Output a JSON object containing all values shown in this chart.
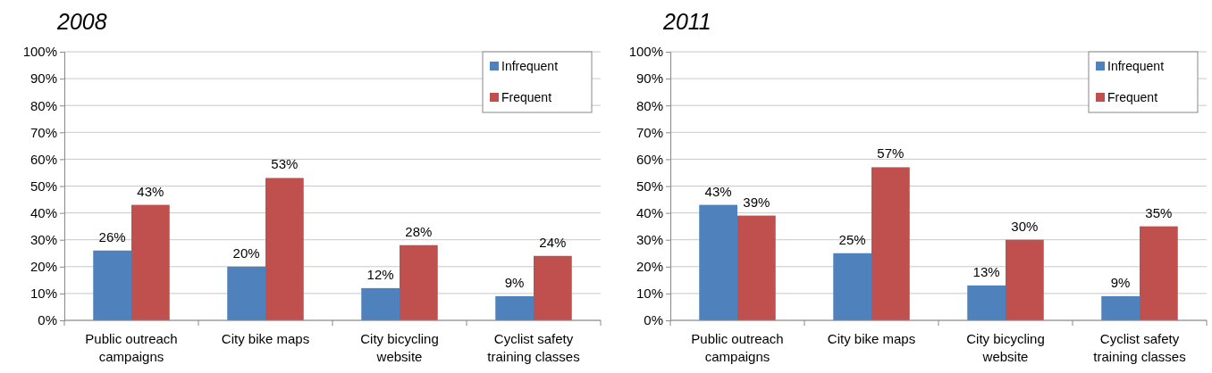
{
  "chart_data": [
    {
      "type": "bar",
      "title": "2008",
      "categories": [
        "Public outreach campaigns",
        "City bike maps",
        "City bicycling website",
        "Cyclist safety training classes"
      ],
      "series": [
        {
          "name": "Infrequent",
          "color": "#4f81bd",
          "values": [
            26,
            20,
            12,
            9
          ],
          "value_labels": [
            "26%",
            "20%",
            "12%",
            "9%"
          ]
        },
        {
          "name": "Frequent",
          "color": "#c0504d",
          "values": [
            43,
            53,
            28,
            24
          ],
          "value_labels": [
            "43%",
            "53%",
            "28%",
            "24%"
          ]
        }
      ],
      "ylim": [
        0,
        100
      ],
      "yticks": [
        {
          "value": 0,
          "label": "0%"
        },
        {
          "value": 10,
          "label": "10%"
        },
        {
          "value": 20,
          "label": "20%"
        },
        {
          "value": 30,
          "label": "30%"
        },
        {
          "value": 40,
          "label": "40%"
        },
        {
          "value": 50,
          "label": "50%"
        },
        {
          "value": 60,
          "label": "60%"
        },
        {
          "value": 70,
          "label": "70%"
        },
        {
          "value": 80,
          "label": "80%"
        },
        {
          "value": 90,
          "label": "90%"
        },
        {
          "value": 100,
          "label": "100%"
        }
      ],
      "grid": "y",
      "legend": "top right"
    },
    {
      "type": "bar",
      "title": "2011",
      "categories": [
        "Public outreach campaigns",
        "City bike maps",
        "City bicycling website",
        "Cyclist safety training classes"
      ],
      "series": [
        {
          "name": "Infrequent",
          "color": "#4f81bd",
          "values": [
            43,
            25,
            13,
            9
          ],
          "value_labels": [
            "43%",
            "25%",
            "13%",
            "9%"
          ]
        },
        {
          "name": "Frequent",
          "color": "#c0504d",
          "values": [
            39,
            57,
            30,
            35
          ],
          "value_labels": [
            "39%",
            "57%",
            "30%",
            "35%"
          ]
        }
      ],
      "ylim": [
        0,
        100
      ],
      "yticks": [
        {
          "value": 0,
          "label": "0%"
        },
        {
          "value": 10,
          "label": "10%"
        },
        {
          "value": 20,
          "label": "20%"
        },
        {
          "value": 30,
          "label": "30%"
        },
        {
          "value": 40,
          "label": "40%"
        },
        {
          "value": 50,
          "label": "50%"
        },
        {
          "value": 60,
          "label": "60%"
        },
        {
          "value": 70,
          "label": "70%"
        },
        {
          "value": 80,
          "label": "80%"
        },
        {
          "value": 90,
          "label": "90%"
        },
        {
          "value": 100,
          "label": "100%"
        }
      ],
      "grid": "y",
      "legend": "top right"
    }
  ]
}
